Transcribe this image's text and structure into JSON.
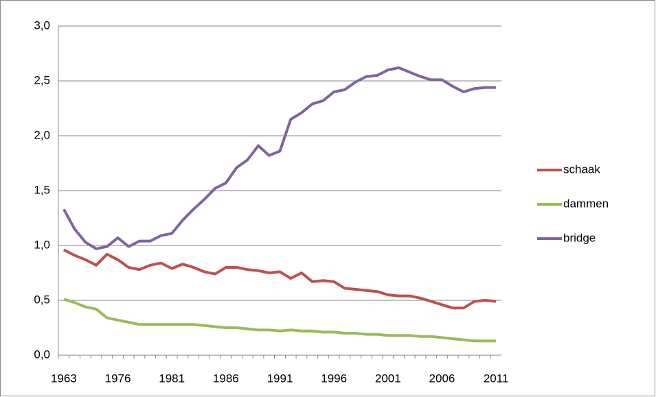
{
  "chart_data": {
    "type": "line",
    "categories": [
      "1963",
      null,
      null,
      null,
      null,
      "1976",
      null,
      null,
      null,
      null,
      "1981",
      null,
      null,
      null,
      null,
      "1986",
      null,
      null,
      null,
      null,
      "1991",
      null,
      null,
      null,
      null,
      "1996",
      null,
      null,
      null,
      null,
      "2001",
      null,
      null,
      null,
      null,
      "2006",
      null,
      null,
      null,
      null,
      "2011"
    ],
    "series": [
      {
        "name": "schaak",
        "color": "#c0504d",
        "values": [
          0.96,
          0.91,
          0.87,
          0.82,
          0.92,
          0.87,
          0.8,
          0.78,
          0.82,
          0.84,
          0.79,
          0.83,
          0.8,
          0.76,
          0.74,
          0.8,
          0.8,
          0.78,
          0.77,
          0.75,
          0.76,
          0.7,
          0.75,
          0.67,
          0.68,
          0.67,
          0.61,
          0.6,
          0.59,
          0.58,
          0.55,
          0.54,
          0.54,
          0.52,
          0.49,
          0.46,
          0.43,
          0.43,
          0.49,
          0.5,
          0.49
        ]
      },
      {
        "name": "dammen",
        "color": "#9bbb59",
        "values": [
          0.51,
          0.48,
          0.44,
          0.42,
          0.34,
          0.32,
          0.3,
          0.28,
          0.28,
          0.28,
          0.28,
          0.28,
          0.28,
          0.27,
          0.26,
          0.25,
          0.25,
          0.24,
          0.23,
          0.23,
          0.22,
          0.23,
          0.22,
          0.22,
          0.21,
          0.21,
          0.2,
          0.2,
          0.19,
          0.19,
          0.18,
          0.18,
          0.18,
          0.17,
          0.17,
          0.16,
          0.15,
          0.14,
          0.13,
          0.13,
          0.13
        ]
      },
      {
        "name": "bridge",
        "color": "#8064a2",
        "values": [
          1.33,
          1.15,
          1.03,
          0.97,
          0.99,
          1.07,
          0.99,
          1.04,
          1.04,
          1.09,
          1.11,
          1.23,
          1.33,
          1.42,
          1.52,
          1.57,
          1.71,
          1.78,
          1.91,
          1.82,
          1.86,
          2.15,
          2.21,
          2.29,
          2.32,
          2.4,
          2.42,
          2.49,
          2.54,
          2.55,
          2.6,
          2.62,
          2.58,
          2.54,
          2.51,
          2.51,
          2.45,
          2.4,
          2.43,
          2.44,
          2.44
        ]
      }
    ],
    "ylim": [
      0,
      3
    ],
    "yticks": [
      {
        "value": 0,
        "label": "0,0"
      },
      {
        "value": 0.5,
        "label": "0,5"
      },
      {
        "value": 1,
        "label": "1,0"
      },
      {
        "value": 1.5,
        "label": "1,5"
      },
      {
        "value": 2,
        "label": "2,0"
      },
      {
        "value": 2.5,
        "label": "2,5"
      },
      {
        "value": 3,
        "label": "3,0"
      }
    ],
    "grid": true,
    "legend": "right"
  }
}
